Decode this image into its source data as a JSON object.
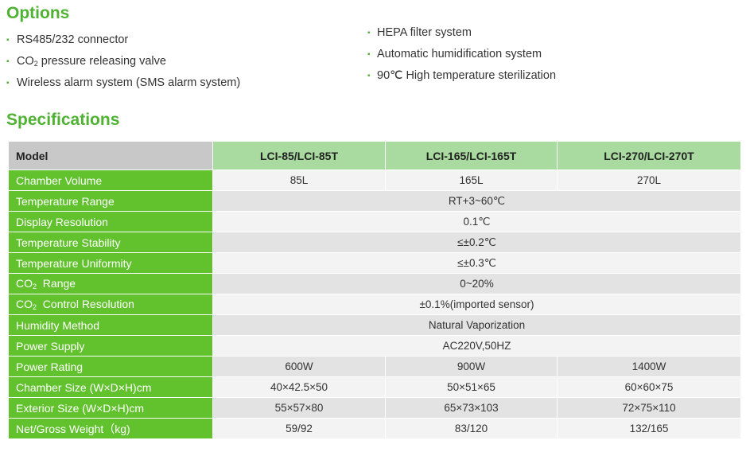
{
  "options": {
    "heading": "Options",
    "left_items": [
      {
        "text": "RS485/232 connector"
      },
      {
        "pre": "CO",
        "sub": "2",
        "post": " pressure releasing valve"
      },
      {
        "text": "Wireless alarm system (SMS alarm system)"
      }
    ],
    "right_items": [
      {
        "text": "HEPA filter system"
      },
      {
        "text": "Automatic humidification system"
      },
      {
        "text": "90℃ High temperature sterilization"
      }
    ]
  },
  "specifications": {
    "heading": "Specifications",
    "header": {
      "model": "Model",
      "columns": [
        "LCI-85/LCI-85T",
        "LCI-165/LCI-165T",
        "LCI-270/LCI-270T"
      ]
    },
    "rows": [
      {
        "label": "Chamber Volume",
        "values": [
          "85L",
          "165L",
          "270L"
        ]
      },
      {
        "label": "Temperature Range",
        "span": "RT+3~60℃"
      },
      {
        "label": "Display Resolution",
        "span": "0.1℃"
      },
      {
        "label": "Temperature Stability",
        "span": "≤±0.2℃"
      },
      {
        "label": "Temperature Uniformity",
        "span": "≤±0.3℃"
      },
      {
        "label_pre": "CO",
        "label_sub": "2",
        "label_post": "  Range",
        "span": "0~20%"
      },
      {
        "label_pre": "CO",
        "label_sub": "2",
        "label_post": "  Control Resolution",
        "span": "±0.1%(imported sensor)"
      },
      {
        "label": "Humidity Method",
        "span": "Natural Vaporization"
      },
      {
        "label": "Power Supply",
        "span": "AC220V,50HZ"
      },
      {
        "label": "Power Rating",
        "values": [
          "600W",
          "900W",
          "1400W"
        ]
      },
      {
        "label": "Chamber Size (W×D×H)cm",
        "values": [
          "40×42.5×50",
          "50×51×65",
          "60×60×75"
        ]
      },
      {
        "label": "Exterior Size (W×D×H)cm",
        "values": [
          "55×57×80",
          "65×73×103",
          "72×75×110"
        ]
      },
      {
        "label": "Net/Gross Weight（kg)",
        "values": [
          "59/92",
          "83/120",
          "132/165"
        ]
      }
    ]
  },
  "colors": {
    "heading_green": "#4fb233",
    "label_green": "#62c22e",
    "header_green": "#a9dba0",
    "model_header_gray": "#c8c8c8",
    "row_light": "#f3f3f3",
    "row_dark": "#e3e3e3"
  }
}
